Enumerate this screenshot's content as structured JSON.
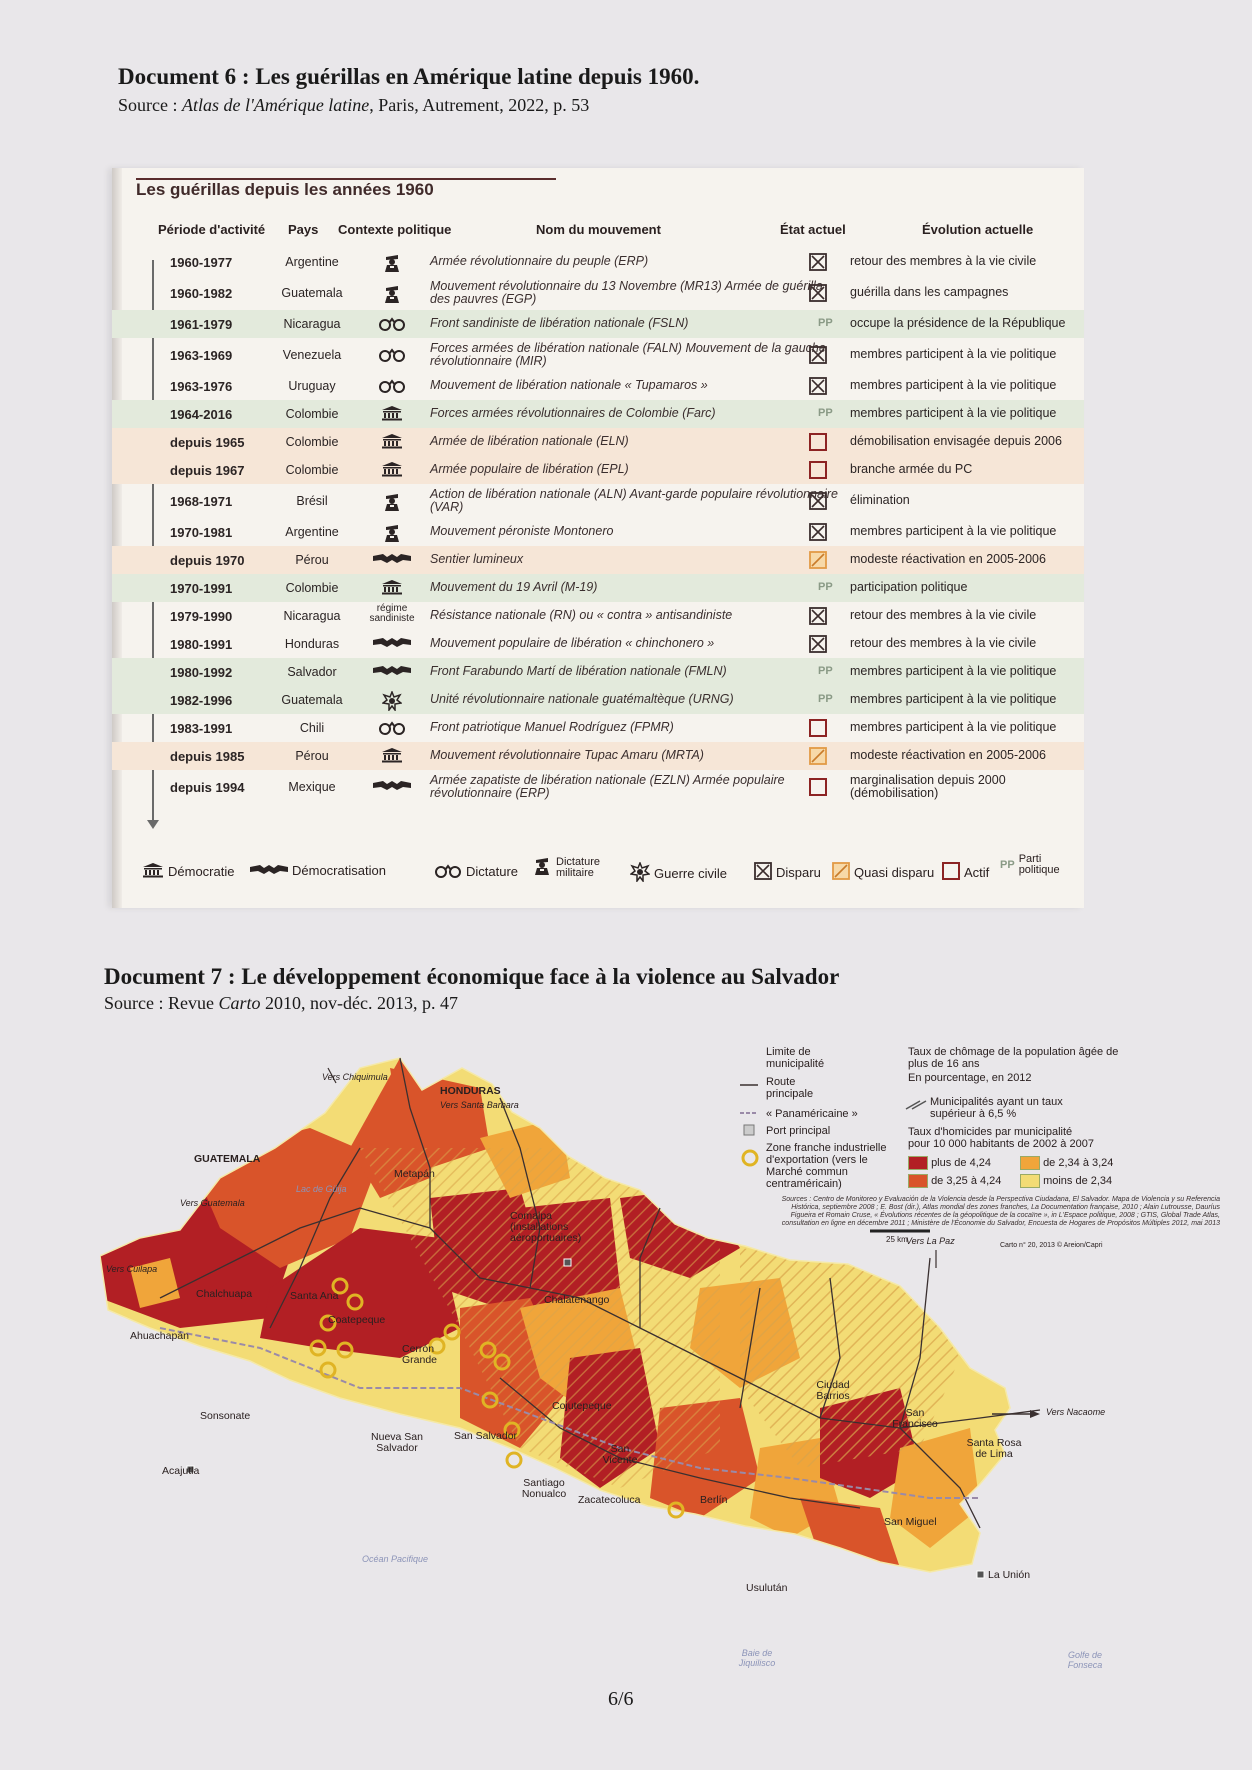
{
  "doc6": {
    "title": "Document 6 : Les guérillas en Amérique latine depuis 1960.",
    "source_prefix": "Source : ",
    "source_italic": "Atlas de l'Amérique latine",
    "source_suffix": ", Paris, Autrement, 2022, p. 53",
    "panel_title": "Les guérillas depuis les années 1960",
    "headers": {
      "period": "Période d'activité",
      "country": "Pays",
      "context": "Contexte politique",
      "name": "Nom du mouvement",
      "state": "État actuel",
      "evolution": "Évolution actuelle"
    },
    "rows": [
      {
        "period": "1960-1977",
        "country": "Argentine",
        "context": "military",
        "name": "Armée révolutionnaire du peuple (ERP)",
        "state": "disparu",
        "evolution": "retour des membres à la vie civile",
        "tint": ""
      },
      {
        "period": "1960-1982",
        "country": "Guatemala",
        "context": "military",
        "name": "Mouvement révolutionnaire du 13 Novembre (MR13) Armée de guérilla des pauvres (EGP)",
        "state": "disparu",
        "evolution": "guérilla dans les campagnes",
        "tint": ""
      },
      {
        "period": "1961-1979",
        "country": "Nicaragua",
        "context": "dictatorship",
        "name": "Front sandiniste de libération nationale (FSLN)",
        "state": "PP",
        "evolution": "occupe la présidence de la République",
        "tint": "green"
      },
      {
        "period": "1963-1969",
        "country": "Venezuela",
        "context": "dictatorship",
        "name": "Forces armées de libération nationale (FALN) Mouvement de la gauche révolutionnaire (MIR)",
        "state": "disparu",
        "evolution": "membres participent à la vie politique",
        "tint": ""
      },
      {
        "period": "1963-1976",
        "country": "Uruguay",
        "context": "dictatorship",
        "name": "Mouvement de libération nationale « Tupamaros »",
        "state": "disparu",
        "evolution": "membres participent à la vie politique",
        "tint": ""
      },
      {
        "period": "1964-2016",
        "country": "Colombie",
        "context": "democracy",
        "name": "Forces armées révolutionnaires de Colombie (Farc)",
        "state": "PP",
        "evolution": "membres participent à la vie politique",
        "tint": "green"
      },
      {
        "period": "depuis 1965",
        "country": "Colombie",
        "context": "democracy",
        "name": "Armée de libération nationale (ELN)",
        "state": "actif",
        "evolution": "démobilisation envisagée depuis 2006",
        "tint": "orange"
      },
      {
        "period": "depuis 1967",
        "country": "Colombie",
        "context": "democracy",
        "name": "Armée populaire de libération (EPL)",
        "state": "actif",
        "evolution": "branche armée du PC",
        "tint": "orange"
      },
      {
        "period": "1968-1971",
        "country": "Brésil",
        "context": "military",
        "name": "Action de libération nationale (ALN) Avant-garde populaire révolutionnaire (VAR)",
        "state": "disparu",
        "evolution": "élimination",
        "tint": ""
      },
      {
        "period": "1970-1981",
        "country": "Argentine",
        "context": "military",
        "name": "Mouvement péroniste Montonero",
        "state": "disparu",
        "evolution": "membres participent à la vie politique",
        "tint": ""
      },
      {
        "period": "depuis 1970",
        "country": "Pérou",
        "context": "democratisation",
        "name": "Sentier lumineux",
        "state": "quasi",
        "evolution": "modeste réactivation en 2005-2006",
        "tint": "orange"
      },
      {
        "period": "1970-1991",
        "country": "Colombie",
        "context": "democracy",
        "name": "Mouvement du 19 Avril (M-19)",
        "state": "PP",
        "evolution": "participation politique",
        "tint": "green"
      },
      {
        "period": "1979-1990",
        "country": "Nicaragua",
        "context": "text",
        "context_text": "régime sandiniste",
        "name": "Résistance nationale (RN) ou « contra » antisandiniste",
        "state": "disparu",
        "evolution": "retour des membres à la vie civile",
        "tint": ""
      },
      {
        "period": "1980-1991",
        "country": "Honduras",
        "context": "democratisation",
        "name": "Mouvement populaire de libération « chinchonero »",
        "state": "disparu",
        "evolution": "retour des membres à la vie civile",
        "tint": ""
      },
      {
        "period": "1980-1992",
        "country": "Salvador",
        "context": "democratisation",
        "name": "Front Farabundo Martí de libération nationale (FMLN)",
        "state": "PP",
        "evolution": "membres participent à la vie politique",
        "tint": "green"
      },
      {
        "period": "1982-1996",
        "country": "Guatemala",
        "context": "civilwar",
        "name": "Unité révolutionnaire nationale guatémaltèque (URNG)",
        "state": "PP",
        "evolution": "membres participent à la vie politique",
        "tint": "green"
      },
      {
        "period": "1983-1991",
        "country": "Chili",
        "context": "dictatorship",
        "name": "Front patriotique Manuel Rodríguez (FPMR)",
        "state": "actif",
        "evolution": "membres participent à la vie politique",
        "tint": ""
      },
      {
        "period": "depuis 1985",
        "country": "Pérou",
        "context": "democracy",
        "name": "Mouvement révolutionnaire Tupac Amaru (MRTA)",
        "state": "quasi",
        "evolution": "modeste réactivation en 2005-2006",
        "tint": "orange"
      },
      {
        "period": "depuis 1994",
        "country": "Mexique",
        "context": "democratisation",
        "name": "Armée zapatiste de libération nationale (EZLN) Armée populaire révolutionnaire (ERP)",
        "state": "actif",
        "evolution": "marginalisation depuis 2000 (démobilisation)",
        "tint": ""
      }
    ],
    "legend": {
      "democracy": "Démocratie",
      "democratisation": "Démocratisation",
      "dictatorship": "Dictature",
      "military": "Dictature militaire",
      "civilwar": "Guerre civile",
      "disparu": "Disparu",
      "quasi": "Quasi disparu",
      "actif": "Actif",
      "pp_symbol": "PP",
      "pp": "Parti politique"
    }
  },
  "doc7": {
    "title": "Document 7 : Le développement économique face à la violence au Salvador",
    "source_prefix": "Source : Revue ",
    "source_italic": "Carto",
    "source_suffix": " 2010, nov-déc. 2013, p. 47",
    "legend": {
      "limit": "Limite de municipalité",
      "road": "Route principale",
      "panam": "« Panaméricaine »",
      "port": "Port principal",
      "zone": "Zone franche industrielle d'exportation (vers le Marché commun centraméricain)",
      "unemp_title": "Taux de chômage de la population âgée de plus de 16 ans",
      "unemp_sub": "En pourcentage, en 2012",
      "unemp_hatch": "Municipalités ayant un taux supérieur à 6,5 %",
      "hom_title": "Taux d'homicides par municipalité",
      "hom_sub": "pour 10 000 habitants de 2002 à 2007",
      "c1": "plus de 4,24",
      "c2": "de 3,25 à 4,24",
      "c3": "de 2,34 à 3,24",
      "c4": "moins de 2,34",
      "scale": "25 km",
      "credit": "Carto n° 20, 2013 © Areion/Capri",
      "sources": "Sources : Centro de Monitoreo y Evaluación de la Violencia desde la Perspectiva Ciudadana, El Salvador. Mapa de Violencia y su Referencia Histórica, septiembre 2008 ; E. Bost (dir.), Atlas mondial des zones franches, La Documentation française, 2010 ; Alain Lutrousse, Dauríus Figueira et Romain Cruse, « Évolutions récentes de la géopolitique de la cocaïne », in L'Espace politique, 2008 ; GTIS, Global Trade Atlas, consultation en ligne en décembre 2011 ; Ministère de l'Économie du Salvador, Encuesta de Hogares de Propósitos Múltiples 2012, mai 2013"
    },
    "labels": {
      "honduras": "HONDURAS",
      "guatemala": "GUATEMALA",
      "chiquimula": "Vers Chiquimula",
      "santa_barbara": "Vers Santa Barbara",
      "guatemala_route": "Vers Guatemala",
      "cuilapa": "Vers Cuilapa",
      "lac_guija": "Lac de Güija",
      "metapan": "Metapán",
      "cerron": "Cerrón Grande",
      "comalpa": "Comalpa (installations aéroportuaires)",
      "chalatenango": "Chalatenango",
      "ahuachapan": "Ahuachapán",
      "chalchuapa": "Chalchuapa",
      "santa_ana": "Santa Ana",
      "coatepeque": "Coatepeque",
      "sonsonate": "Sonsonate",
      "acajutla": "Acajutla",
      "nueva_ss": "Nueva San Salvador",
      "san_salvador": "San Salvador",
      "cojutepeque": "Cojutepeque",
      "san_vicente": "San Vicente",
      "santiago": "Santiago Nonualco",
      "zacatecoluca": "Zacatecoluca",
      "berlin": "Berlín",
      "usulutan": "Usulután",
      "san_miguel": "San Miguel",
      "ciudad_barrios": "Ciudad Barrios",
      "san_francisco": "San Francisco",
      "santa_rosa": "Santa Rosa de Lima",
      "la_union": "La Unión",
      "la_paz": "Vers La Paz",
      "nacaome": "Vers Nacaome",
      "ocean": "Océan Pacifique",
      "bahia": "Baie de Jiquilisco",
      "golfe": "Golfe de Fonseca"
    },
    "colors": {
      "c1": "#b21f24",
      "c2": "#d9542a",
      "c3": "#f0a53a",
      "c4": "#f3dc75"
    }
  },
  "page": {
    "number": "6/6"
  }
}
